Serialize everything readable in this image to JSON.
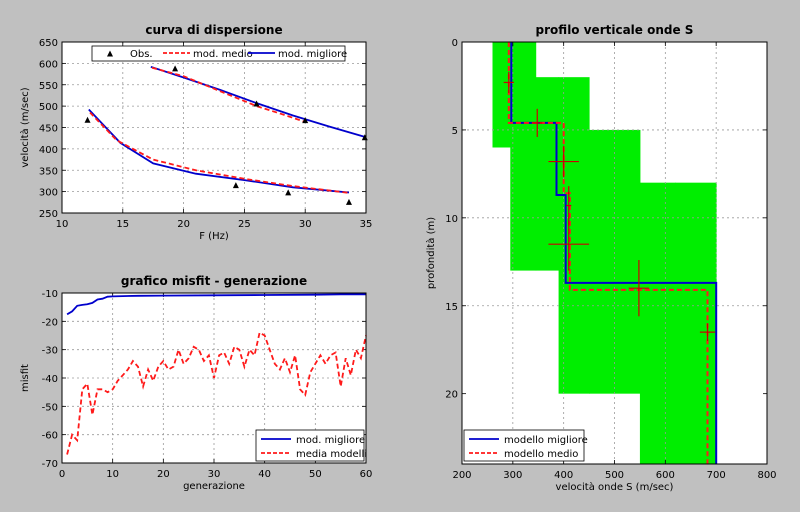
{
  "colors": {
    "figure_bg": "#c0c0c0",
    "axes_bg": "#ffffff",
    "grid": "#9a9a9a",
    "blue": "#0000cc",
    "red": "#ff1a1a",
    "band": "#00ee00",
    "text": "#000000"
  },
  "chart_data": [
    {
      "id": "disp",
      "type": "line",
      "title": "curva di dispersione",
      "xlabel": "F (Hz)",
      "ylabel": "velocità (m/sec)",
      "xlim": [
        10,
        35
      ],
      "ylim": [
        250,
        650
      ],
      "xticks": [
        10,
        15,
        20,
        25,
        30,
        35
      ],
      "yticks": [
        250,
        300,
        350,
        400,
        450,
        500,
        550,
        600,
        650
      ],
      "grid": true,
      "legend": {
        "placement": "top",
        "entries": [
          "Obs.",
          "mod. medio",
          "mod. migliore"
        ]
      },
      "series": [
        {
          "name": "Obs.",
          "style": "triangle",
          "color": "#000000",
          "points": [
            [
              12.1,
              467
            ],
            [
              19.3,
              587
            ],
            [
              24.3,
              314
            ],
            [
              26,
              505
            ],
            [
              28.6,
              297
            ],
            [
              30,
              466
            ],
            [
              33.6,
              275
            ],
            [
              34.9,
              426
            ]
          ]
        },
        {
          "name": "mod. medio",
          "style": "dashed",
          "color": "#ff1a1a",
          "segments": [
            [
              [
                17.4,
                590
              ],
              [
                20,
                570
              ],
              [
                23,
                535
              ],
              [
                26,
                500
              ],
              [
                28,
                482
              ],
              [
                30,
                463
              ]
            ],
            [
              [
                12.3,
                485
              ],
              [
                14.5,
                420
              ],
              [
                17.5,
                375
              ],
              [
                21,
                350
              ],
              [
                25,
                330
              ],
              [
                29,
                313
              ],
              [
                33.6,
                297
              ]
            ]
          ]
        },
        {
          "name": "mod. migliore",
          "style": "solid",
          "color": "#0000cc",
          "segments": [
            [
              [
                17.3,
                592
              ],
              [
                20,
                567
              ],
              [
                23,
                538
              ],
              [
                26,
                507
              ],
              [
                29,
                478
              ],
              [
                32,
                452
              ],
              [
                34.9,
                428
              ]
            ],
            [
              [
                12.2,
                492
              ],
              [
                14.8,
                414
              ],
              [
                17.5,
                366
              ],
              [
                21,
                342
              ],
              [
                25,
                327
              ],
              [
                29,
                310
              ],
              [
                33.6,
                298
              ]
            ]
          ]
        }
      ]
    },
    {
      "id": "misfit",
      "type": "line",
      "title": "grafico misfit - generazione",
      "xlabel": "generazione",
      "ylabel": "misfit",
      "xlim": [
        0,
        60
      ],
      "ylim": [
        -70,
        -10
      ],
      "xticks": [
        0,
        10,
        20,
        30,
        40,
        50,
        60
      ],
      "yticks": [
        -70,
        -60,
        -50,
        -40,
        -30,
        -20,
        -10
      ],
      "grid": true,
      "legend": {
        "placement": "bottom-right",
        "entries": [
          "mod. migliore",
          "media modelli"
        ]
      },
      "series": [
        {
          "name": "mod. migliore",
          "style": "solid",
          "color": "#0000cc",
          "x": [
            1,
            2,
            3,
            4,
            5,
            6,
            7,
            8,
            9,
            10,
            12,
            15,
            20,
            30,
            40,
            50,
            55,
            60
          ],
          "y": [
            -17.5,
            -16.5,
            -14.5,
            -14.2,
            -14,
            -13.5,
            -12.3,
            -12,
            -11.3,
            -11.2,
            -11.1,
            -11,
            -10.9,
            -10.8,
            -10.7,
            -10.6,
            -10.5,
            -10.5
          ]
        },
        {
          "name": "media modelli",
          "style": "dashed",
          "color": "#ff1a1a",
          "x": [
            1,
            2,
            3,
            4,
            5,
            6,
            7,
            8,
            9,
            10,
            11,
            12,
            13,
            14,
            15,
            16,
            17,
            18,
            19,
            20,
            21,
            22,
            23,
            24,
            25,
            26,
            27,
            28,
            29,
            30,
            31,
            32,
            33,
            34,
            35,
            36,
            37,
            38,
            39,
            40,
            41,
            42,
            43,
            44,
            45,
            46,
            47,
            48,
            49,
            50,
            51,
            52,
            53,
            54,
            55,
            56,
            57,
            58,
            59,
            60
          ],
          "y": [
            -67,
            -60,
            -62,
            -44,
            -42,
            -53,
            -44,
            -44,
            -45,
            -44,
            -41,
            -39,
            -37,
            -34,
            -36,
            -43,
            -37,
            -41,
            -36,
            -34,
            -37,
            -36,
            -30,
            -35,
            -33,
            -29,
            -30,
            -34,
            -32,
            -40,
            -32,
            -31,
            -35,
            -29,
            -30,
            -36,
            -30,
            -32,
            -24,
            -25,
            -30,
            -35,
            -37,
            -33,
            -38,
            -32,
            -44,
            -46,
            -38,
            -35,
            -32,
            -35,
            -32,
            -31,
            -43,
            -33,
            -39,
            -30,
            -33,
            -25
          ]
        }
      ]
    },
    {
      "id": "profilo",
      "type": "line",
      "title": "profilo verticale onde S",
      "xlabel": "velocità onde S (m/sec)",
      "ylabel": "profondità (m)",
      "xlim": [
        200,
        800
      ],
      "ylim": [
        0,
        24
      ],
      "y_reversed": true,
      "xticks": [
        200,
        300,
        400,
        500,
        600,
        700,
        800
      ],
      "yticks": [
        0,
        5,
        10,
        15,
        20
      ],
      "grid": true,
      "legend": {
        "placement": "bottom-left",
        "entries": [
          "modello migliore",
          "modello medio"
        ]
      },
      "band": [
        [
          260,
          295,
          0,
          6
        ],
        [
          295,
          345,
          0,
          13
        ],
        [
          345,
          390,
          2,
          13
        ],
        [
          390,
          450,
          2,
          20
        ],
        [
          450,
          550,
          5,
          20
        ],
        [
          550,
          620,
          8,
          24
        ],
        [
          620,
          700,
          8,
          24
        ]
      ],
      "series": [
        {
          "name": "modello migliore",
          "style": "solid",
          "color": "#0000cc",
          "points": [
            [
              297,
              0
            ],
            [
              297,
              4.6
            ],
            [
              386,
              4.6
            ],
            [
              386,
              8.7
            ],
            [
              404,
              8.7
            ],
            [
              404,
              13.7
            ],
            [
              700,
              13.7
            ],
            [
              700,
              24
            ]
          ]
        },
        {
          "name": "modello medio",
          "style": "dashed",
          "color": "#ff1a1a",
          "points": [
            [
              292,
              0
            ],
            [
              292,
              4.6
            ],
            [
              400,
              4.6
            ],
            [
              400,
              8.6
            ],
            [
              412,
              8.6
            ],
            [
              412,
              14.1
            ],
            [
              683,
              14.1
            ],
            [
              683,
              24
            ]
          ]
        },
        {
          "name": "error bars",
          "style": "cross",
          "color": "#cc0000",
          "items": [
            {
              "x": 292,
              "y": 2.3,
              "dx": 10,
              "dy": 0.6
            },
            {
              "x": 348,
              "y": 4.6,
              "dx": 10,
              "dy": 0.8
            },
            {
              "x": 400,
              "y": 6.8,
              "dx": 30,
              "dy": 0.9
            },
            {
              "x": 410,
              "y": 9.3,
              "dx": 5,
              "dy": 1.1
            },
            {
              "x": 410,
              "y": 11.5,
              "dx": 40,
              "dy": 1.5
            },
            {
              "x": 548,
              "y": 14.0,
              "dx": 20,
              "dy": 1.6
            },
            {
              "x": 683,
              "y": 16.5,
              "dx": 15,
              "dy": 0.5
            }
          ]
        }
      ]
    }
  ]
}
